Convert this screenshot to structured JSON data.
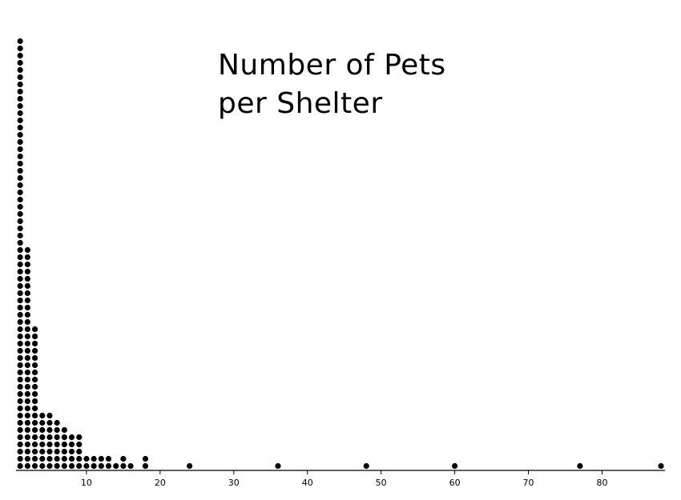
{
  "chart_data": {
    "type": "dot plot",
    "title_lines": [
      "Number of Pets",
      "per Shelter"
    ],
    "xlabel": "",
    "ylabel": "",
    "xlim": [
      0,
      88
    ],
    "x_ticks": [
      10,
      20,
      30,
      40,
      50,
      60,
      70,
      80
    ],
    "grid": false,
    "dot_color": "#000000",
    "axis_color": "#000000",
    "points": [
      {
        "x": 1,
        "count": 60
      },
      {
        "x": 2,
        "count": 31
      },
      {
        "x": 3,
        "count": 20
      },
      {
        "x": 4,
        "count": 8
      },
      {
        "x": 5,
        "count": 8
      },
      {
        "x": 6,
        "count": 7
      },
      {
        "x": 7,
        "count": 6
      },
      {
        "x": 8,
        "count": 5
      },
      {
        "x": 9,
        "count": 5
      },
      {
        "x": 10,
        "count": 2
      },
      {
        "x": 11,
        "count": 2
      },
      {
        "x": 12,
        "count": 2
      },
      {
        "x": 13,
        "count": 2
      },
      {
        "x": 14,
        "count": 1
      },
      {
        "x": 15,
        "count": 2
      },
      {
        "x": 16,
        "count": 1
      },
      {
        "x": 18,
        "count": 2
      },
      {
        "x": 24,
        "count": 1
      },
      {
        "x": 36,
        "count": 1
      },
      {
        "x": 48,
        "count": 1
      },
      {
        "x": 60,
        "count": 1
      },
      {
        "x": 77,
        "count": 1
      },
      {
        "x": 88,
        "count": 1
      }
    ]
  }
}
